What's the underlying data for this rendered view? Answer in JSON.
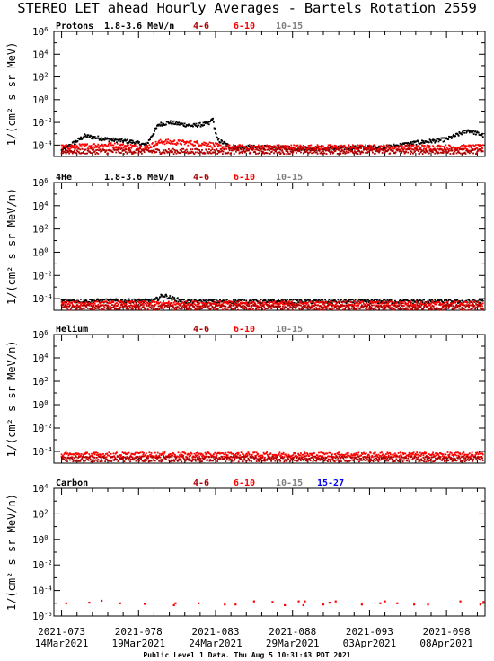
{
  "title": "STEREO LET ahead Hourly Averages - Bartels Rotation 2559",
  "footer": "Public Level 1 Data. Thu Aug  5 10:31:43 PDT 2021",
  "colors": {
    "black": "#000000",
    "dark_red": "#b00000",
    "red": "#ff0000",
    "gray": "#808080",
    "blue": "#0000ee"
  },
  "x_axis": {
    "ticks": [
      {
        "top": "2021-073",
        "bottom": "14Mar2021",
        "day": 0
      },
      {
        "top": "2021-078",
        "bottom": "19Mar2021",
        "day": 5
      },
      {
        "top": "2021-083",
        "bottom": "24Mar2021",
        "day": 10
      },
      {
        "top": "2021-088",
        "bottom": "29Mar2021",
        "day": 15
      },
      {
        "top": "2021-093",
        "bottom": "03Apr2021",
        "day": 20
      },
      {
        "top": "2021-098",
        "bottom": "08Apr2021",
        "day": 25
      }
    ],
    "range": [
      -0.5,
      27.5
    ]
  },
  "chart_data": [
    {
      "type": "scatter",
      "species": "Protons",
      "energy": "1.8-3.6 MeV/n",
      "ylabel": "1/(cm² s sr MeV)",
      "ylog": [
        -5,
        6
      ],
      "yticks": [
        6,
        4,
        2,
        0,
        -2,
        -4
      ],
      "legend": [
        {
          "label": "4-6",
          "color": "dark_red"
        },
        {
          "label": "6-10",
          "color": "red"
        },
        {
          "label": "10-15",
          "color": "gray"
        }
      ],
      "series": [
        {
          "color": "black",
          "knots": [
            [
              0,
              -4.5
            ],
            [
              1.5,
              -3.2
            ],
            [
              3,
              -3.5
            ],
            [
              4.5,
              -3.7
            ],
            [
              5.5,
              -4.0
            ],
            [
              6.3,
              -2.2
            ],
            [
              7,
              -2.0
            ],
            [
              8.5,
              -2.3
            ],
            [
              9.6,
              -2.1
            ],
            [
              9.8,
              -1.6
            ],
            [
              10.1,
              -3.5
            ],
            [
              11,
              -4.2
            ],
            [
              13,
              -4.2
            ],
            [
              16,
              -4.3
            ],
            [
              21,
              -4.2
            ],
            [
              23,
              -3.8
            ],
            [
              25,
              -3.5
            ],
            [
              26.4,
              -2.7
            ],
            [
              27.5,
              -3.2
            ]
          ]
        },
        {
          "color": "red",
          "knots": [
            [
              0,
              -4.2
            ],
            [
              3,
              -4.0
            ],
            [
              5.5,
              -4.2
            ],
            [
              6.5,
              -3.7
            ],
            [
              9.5,
              -3.9
            ],
            [
              10.5,
              -4.2
            ],
            [
              27.5,
              -4.2
            ]
          ]
        },
        {
          "color": "dark_red",
          "knots": [
            [
              0,
              -4.55
            ],
            [
              27.5,
              -4.55
            ]
          ]
        }
      ]
    },
    {
      "type": "scatter",
      "species": "4He",
      "energy": "1.8-3.6 MeV/n",
      "ylabel": "1/(cm² s sr MeV/n)",
      "ylog": [
        -5,
        6
      ],
      "yticks": [
        6,
        4,
        2,
        0,
        -2,
        -4
      ],
      "legend": [
        {
          "label": "4-6",
          "color": "dark_red"
        },
        {
          "label": "6-10",
          "color": "red"
        },
        {
          "label": "10-15",
          "color": "gray"
        }
      ],
      "series": [
        {
          "color": "black",
          "knots": [
            [
              0,
              -4.2
            ],
            [
              6,
              -4.2
            ],
            [
              6.6,
              -3.7
            ],
            [
              7.2,
              -4.0
            ],
            [
              8,
              -4.25
            ],
            [
              27.5,
              -4.25
            ]
          ]
        },
        {
          "color": "red",
          "knots": [
            [
              0,
              -4.45
            ],
            [
              27.5,
              -4.45
            ]
          ]
        },
        {
          "color": "dark_red",
          "knots": [
            [
              0,
              -4.75
            ],
            [
              27.5,
              -4.75
            ]
          ]
        }
      ]
    },
    {
      "type": "scatter",
      "species": "Helium",
      "energy": "",
      "ylabel": "1/(cm² s sr MeV/n)",
      "ylog": [
        -5,
        6
      ],
      "yticks": [
        6,
        4,
        2,
        0,
        -2,
        -4
      ],
      "legend": [
        {
          "label": "4-6",
          "color": "dark_red"
        },
        {
          "label": "6-10",
          "color": "red"
        },
        {
          "label": "10-15",
          "color": "gray"
        }
      ],
      "series": [
        {
          "color": "red",
          "knots": [
            [
              0,
              -4.3
            ],
            [
              27.5,
              -4.3
            ]
          ]
        },
        {
          "color": "dark_red",
          "knots": [
            [
              0,
              -4.65
            ],
            [
              27.5,
              -4.65
            ]
          ]
        }
      ]
    },
    {
      "type": "scatter",
      "species": "Carbon",
      "energy": "",
      "ylabel": "1/(cm² s sr MeV/n)",
      "ylog": [
        -6,
        4
      ],
      "yticks": [
        4,
        2,
        0,
        -2,
        -4,
        -6
      ],
      "legend": [
        {
          "label": "4-6",
          "color": "dark_red"
        },
        {
          "label": "6-10",
          "color": "red"
        },
        {
          "label": "10-15",
          "color": "gray"
        },
        {
          "label": "15-27",
          "color": "blue"
        }
      ],
      "points": [
        [
          0.3,
          -5.0
        ],
        [
          1.8,
          -4.95
        ],
        [
          2.6,
          -4.8
        ],
        [
          3.8,
          -5.0
        ],
        [
          5.4,
          -5.05
        ],
        [
          7.3,
          -5.15
        ],
        [
          7.4,
          -5.0
        ],
        [
          8.9,
          -5.0
        ],
        [
          10.6,
          -5.1
        ],
        [
          11.3,
          -5.1
        ],
        [
          12.5,
          -4.85
        ],
        [
          13.7,
          -4.9
        ],
        [
          14.5,
          -5.15
        ],
        [
          15.4,
          -4.85
        ],
        [
          15.7,
          -5.15
        ],
        [
          15.8,
          -4.85
        ],
        [
          17.0,
          -5.1
        ],
        [
          17.4,
          -4.95
        ],
        [
          17.8,
          -4.85
        ],
        [
          19.5,
          -5.1
        ],
        [
          20.7,
          -5.0
        ],
        [
          21.0,
          -4.85
        ],
        [
          21.8,
          -5.0
        ],
        [
          22.9,
          -5.1
        ],
        [
          23.8,
          -5.1
        ],
        [
          25.9,
          -4.85
        ],
        [
          27.2,
          -5.1
        ],
        [
          27.4,
          -4.9
        ]
      ],
      "points_color": "red"
    }
  ]
}
